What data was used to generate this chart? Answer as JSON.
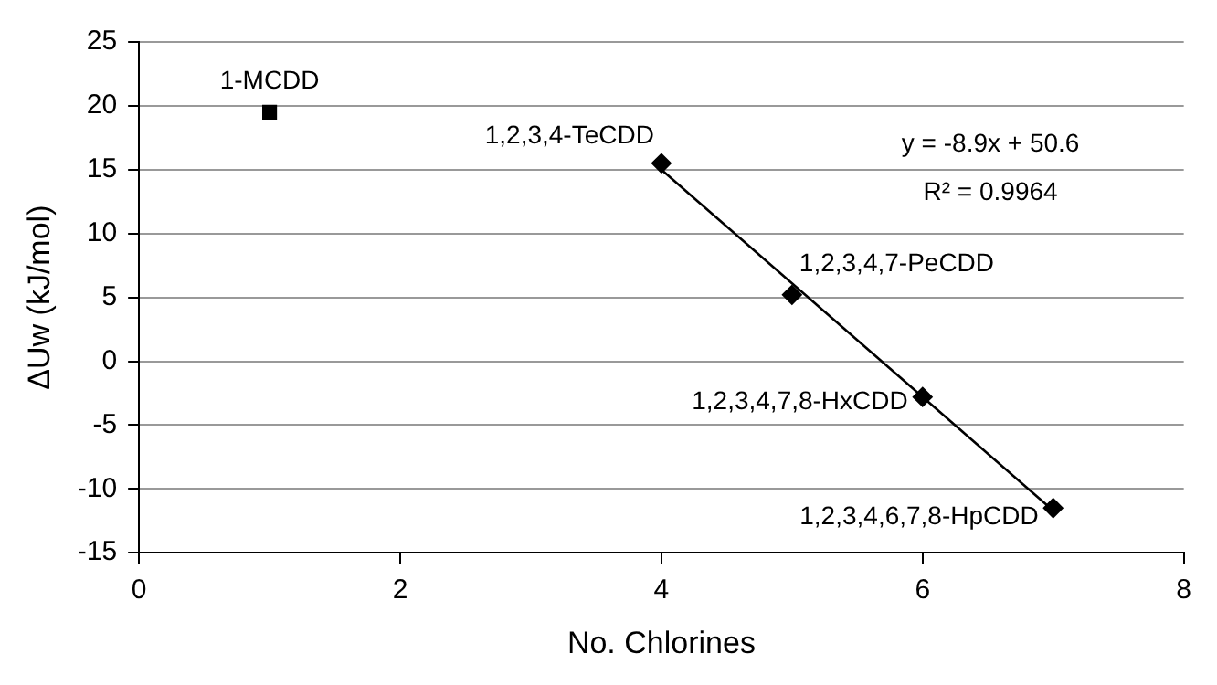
{
  "chart_data": {
    "type": "scatter",
    "xlabel": "No. Chlorines",
    "ylabel": "ΔUw (kJ/mol)",
    "xlim": [
      0,
      8
    ],
    "xticks": [
      0,
      2,
      4,
      6,
      8
    ],
    "ylim": [
      -15,
      25
    ],
    "yticks": [
      -15,
      -10,
      -5,
      0,
      5,
      10,
      15,
      20,
      25
    ],
    "grid": "y",
    "legend": false,
    "series": [
      {
        "color": "#000000",
        "marker": "square",
        "x": [
          1
        ],
        "values": [
          19.5
        ]
      },
      {
        "color": "#000000",
        "marker": "diamond",
        "x": [
          4,
          5,
          6,
          7
        ],
        "values": [
          15.5,
          5.2,
          -2.8,
          -11.5
        ]
      },
      {
        "type": "line",
        "color": "#000000",
        "marker": "none",
        "x": [
          4,
          7
        ],
        "values": [
          15,
          -11.7
        ]
      }
    ],
    "annotations": [
      {
        "text": "1-MCDD",
        "x": 1,
        "y": 19.5
      },
      {
        "text": "1,2,3,4-TeCDD",
        "x": 4,
        "y": 15.5
      },
      {
        "text": "1,2,3,4,7-PeCDD",
        "x": 5,
        "y": 5.2
      },
      {
        "text": "1,2,3,4,7,8-HxCDD",
        "x": 6,
        "y": -2.8
      },
      {
        "text": "1,2,3,4,6,7,8-HpCDD",
        "x": 7,
        "y": -11.5
      },
      "y = -8.9x + 50.6",
      "R² = 0.9964"
    ]
  }
}
